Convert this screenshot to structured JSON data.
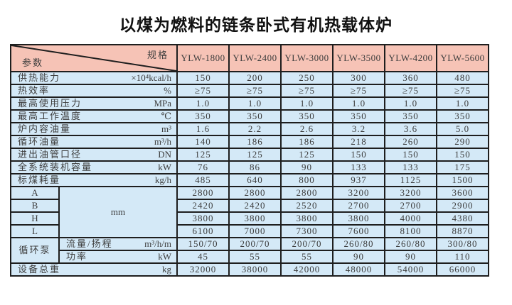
{
  "page": {
    "title": "以煤为燃料的链条卧式有机热载体炉"
  },
  "colors": {
    "header_bg": "#f6c3b6",
    "body_bg": "#d4e9f7",
    "border": "#1e1e1e",
    "text": "#3d3d3d"
  },
  "table": {
    "corner": {
      "spec_label": "规格",
      "param_label": "参数"
    },
    "models": [
      "YLW-1800",
      "YLW-2400",
      "YLW-3000",
      "YLW-3500",
      "YLW-4200",
      "YLW-5600"
    ],
    "param_rows": [
      {
        "label": "供热能力",
        "unit": "×10⁴kcal/h",
        "values": [
          "150",
          "200",
          "250",
          "300",
          "360",
          "480"
        ]
      },
      {
        "label": "热效率",
        "unit": "%",
        "values": [
          "≥75",
          "≥75",
          "≥75",
          "≥75",
          "≥75",
          "≥75"
        ]
      },
      {
        "label": "最高使用压力",
        "unit": "MPa",
        "values": [
          "1.0",
          "1.0",
          "1.0",
          "1.0",
          "1.0",
          "1.0"
        ]
      },
      {
        "label": "最高工作温度",
        "unit": "℃",
        "values": [
          "350",
          "350",
          "350",
          "350",
          "350",
          "350"
        ]
      },
      {
        "label": "炉内容油量",
        "unit": "m³",
        "values": [
          "1.6",
          "2.2",
          "2.6",
          "3.2",
          "3.6",
          "5.0"
        ]
      },
      {
        "label": "循环油量",
        "unit": "m³/h",
        "values": [
          "140",
          "186",
          "186",
          "218",
          "260",
          "290"
        ]
      },
      {
        "label": "进出油管口径",
        "unit": "DN",
        "values": [
          "125",
          "125",
          "125",
          "150",
          "150",
          "150"
        ]
      },
      {
        "label": "全系统装机容量",
        "unit": "kW",
        "values": [
          "76",
          "86",
          "90",
          "133",
          "133",
          "175"
        ]
      },
      {
        "label": "标煤耗量",
        "unit": "kg/h",
        "values": [
          "485",
          "640",
          "800",
          "937",
          "1125",
          "1500"
        ]
      }
    ],
    "dimension_block": {
      "unit": "mm",
      "rows": [
        {
          "label": "A",
          "values": [
            "2800",
            "2800",
            "2800",
            "3200",
            "3200",
            "3600"
          ]
        },
        {
          "label": "B",
          "values": [
            "2420",
            "2420",
            "2520",
            "2700",
            "2700",
            "2900"
          ]
        },
        {
          "label": "H",
          "values": [
            "3800",
            "3800",
            "3800",
            "3800",
            "4000",
            "4380"
          ]
        },
        {
          "label": "L",
          "values": [
            "6100",
            "7000",
            "7300",
            "7600",
            "8100",
            "8870"
          ]
        }
      ]
    },
    "pump_block": {
      "label": "循环泵",
      "rows": [
        {
          "label": "流量/扬程",
          "unit": "m³/h/m",
          "values": [
            "150/70",
            "200/70",
            "200/70",
            "260/80",
            "260/80",
            "300/80"
          ]
        },
        {
          "label": "功率",
          "unit": "kW",
          "values": [
            "45",
            "55",
            "55",
            "90",
            "90",
            "110"
          ]
        }
      ]
    },
    "total_row": {
      "label": "设备总重",
      "unit": "kg",
      "values": [
        "32000",
        "38000",
        "42000",
        "48000",
        "54000",
        "66000"
      ]
    }
  }
}
